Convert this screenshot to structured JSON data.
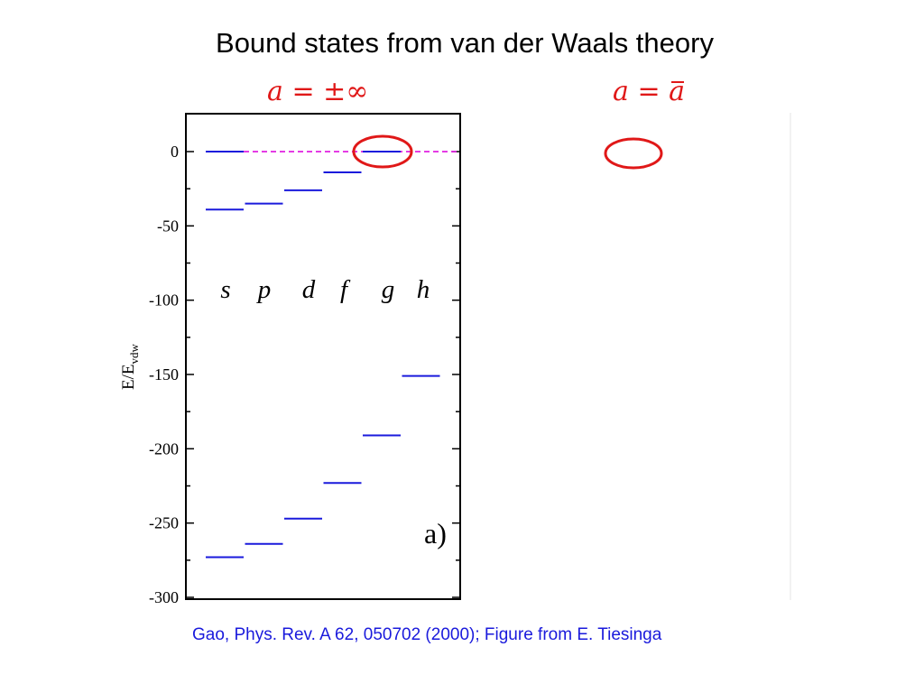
{
  "slide": {
    "title": "Bound states from van der Waals theory",
    "caption": "Gao, Phys. Rev. A 62, 050702 (2000); Figure from E. Tiesinga",
    "labels": {
      "left_symbol": "a",
      "left_value": "±∞",
      "right_symbol": "a",
      "right_value": "a",
      "equals": "="
    }
  },
  "colors": {
    "levels": "#1a1adc",
    "threshold": "#e020e0",
    "highlight": "#e01818",
    "caption": "#1a1adc"
  },
  "chart_data": {
    "type": "line",
    "title": "",
    "ylabel": "E/E",
    "ylabel_sub": "vdw",
    "ylim": [
      -300,
      0
    ],
    "yticks": [
      0,
      -50,
      -100,
      -150,
      -200,
      -250,
      -300
    ],
    "panel_label": "a)",
    "categories": [
      "s",
      "p",
      "d",
      "f",
      "g",
      "h"
    ],
    "threshold": 0,
    "series": [
      {
        "values": [
          -273,
          -264,
          -247,
          -223,
          -191,
          -151
        ]
      },
      {
        "values": [
          -39,
          -35,
          -26,
          -14,
          0,
          null
        ]
      }
    ],
    "threshold_bound": {
      "l_index": 0,
      "energy": 0
    }
  }
}
